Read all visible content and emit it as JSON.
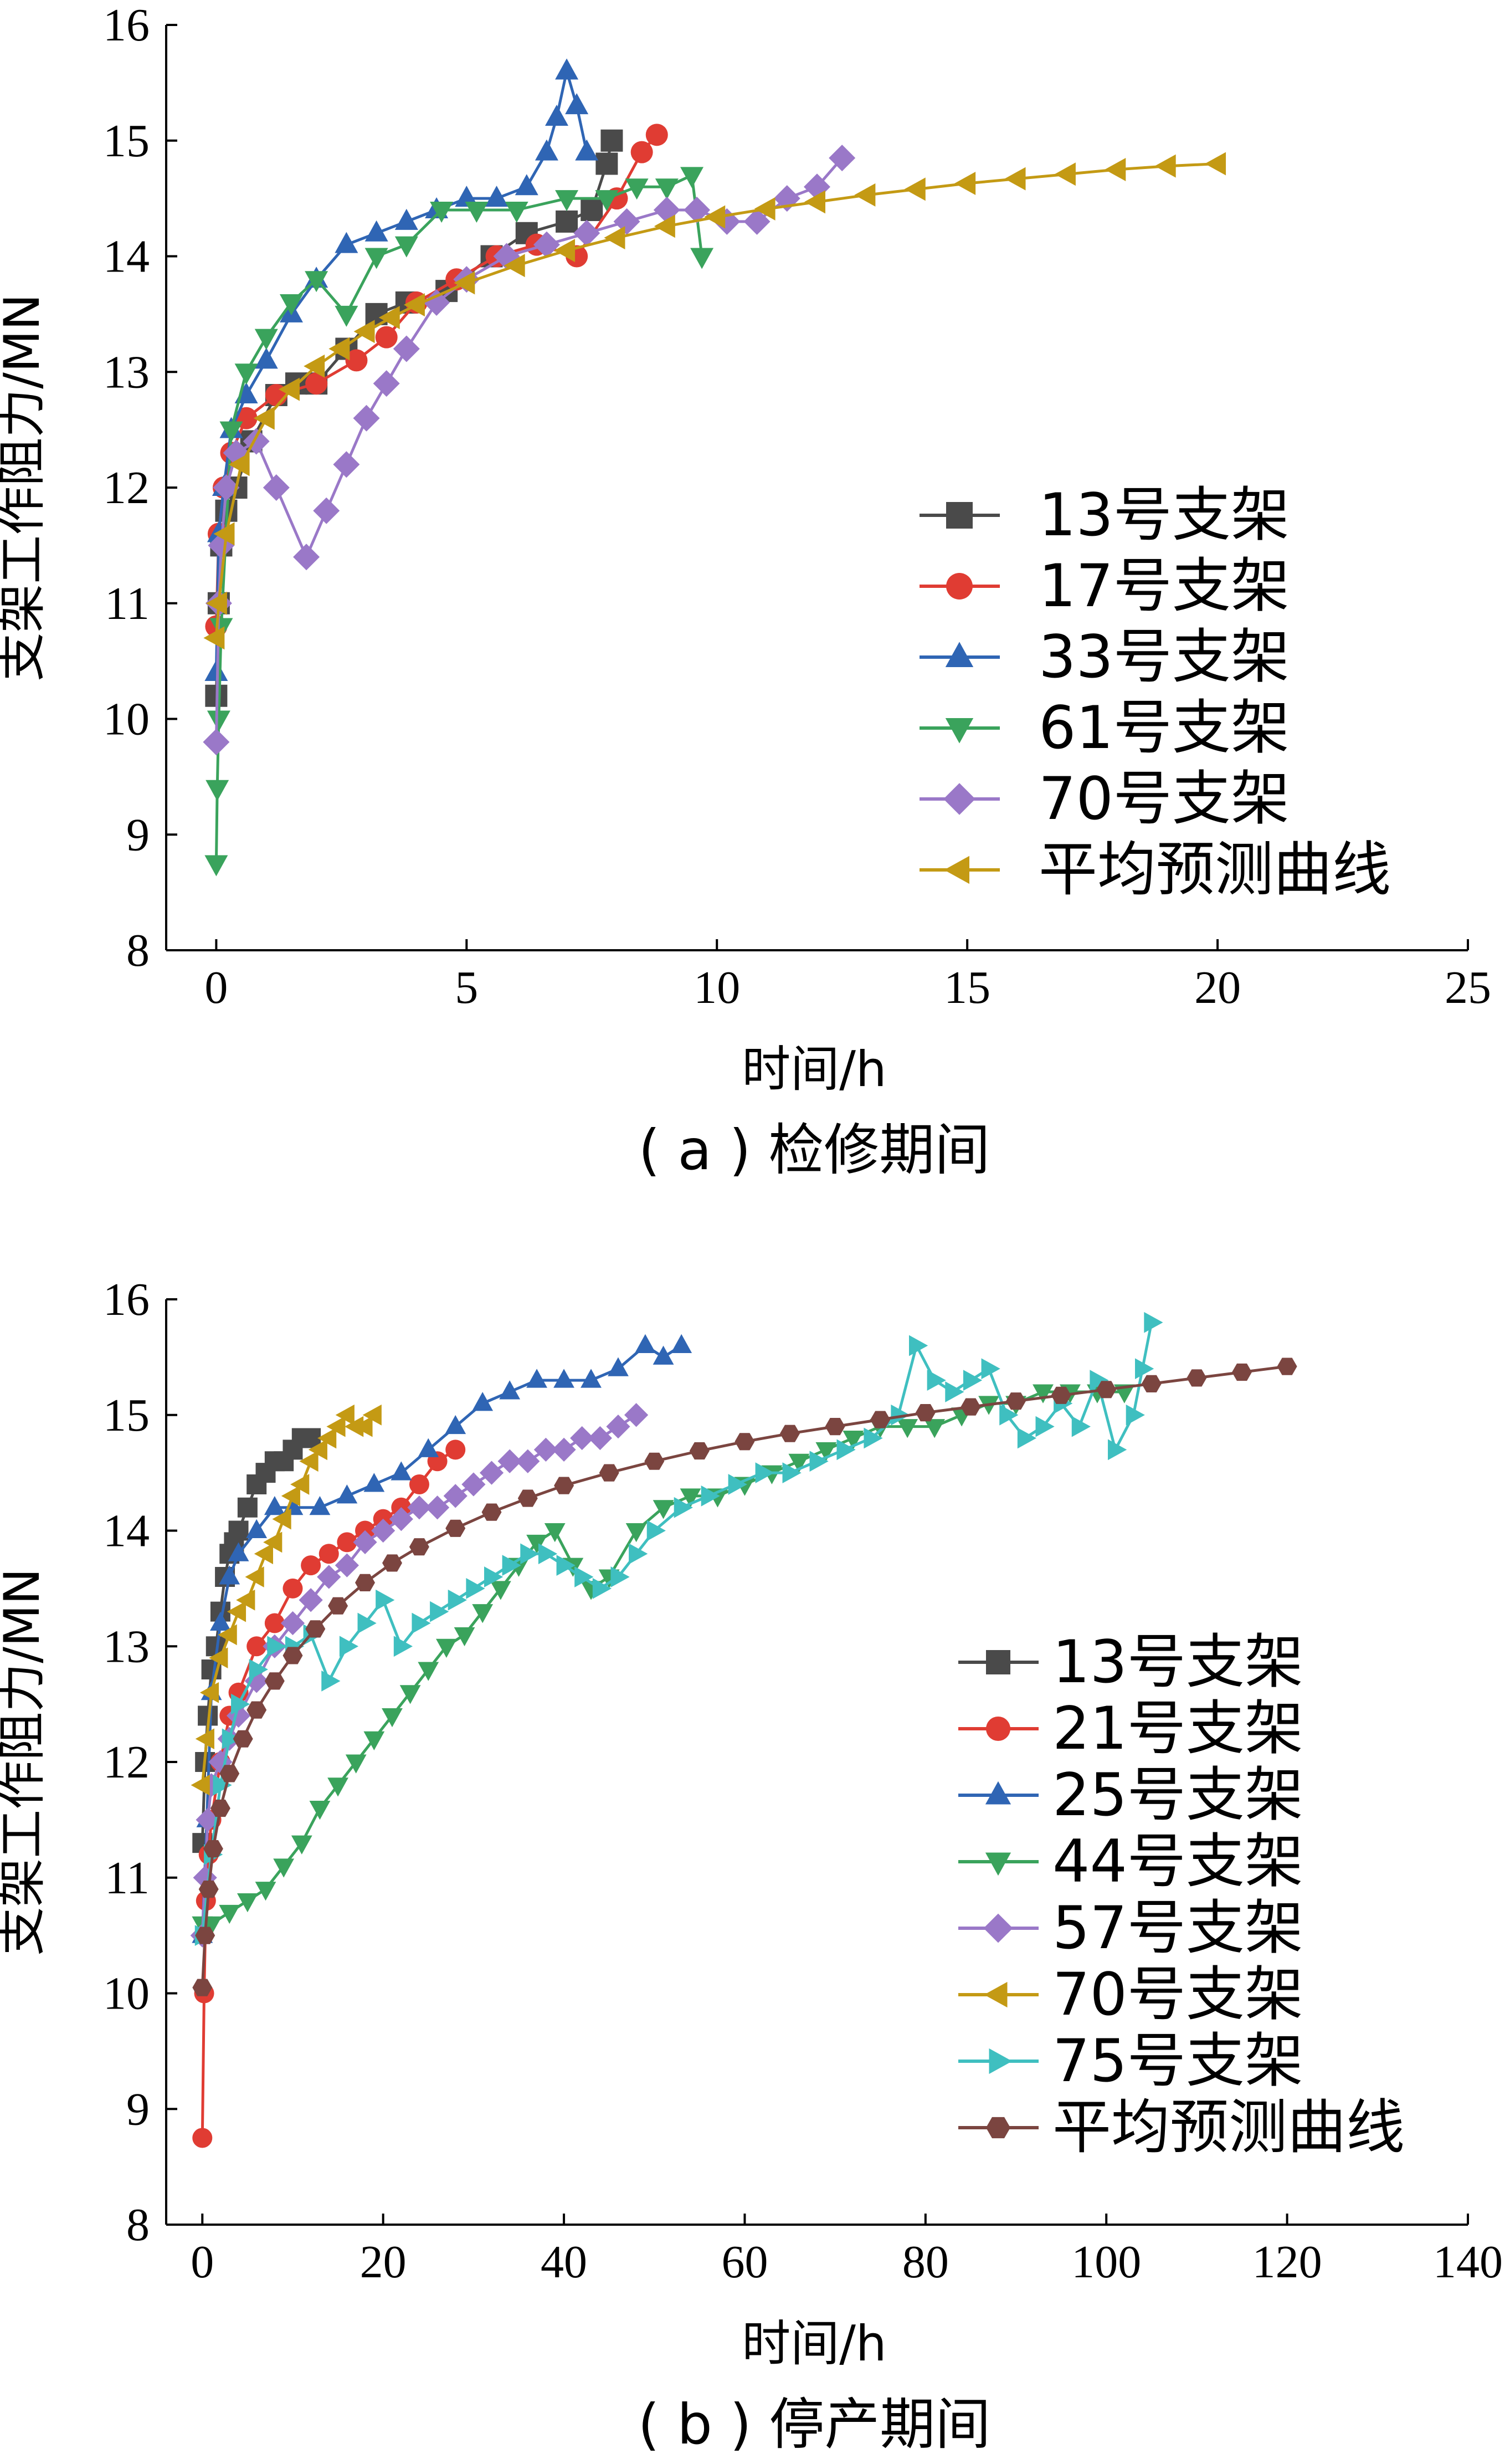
{
  "chart_data": [
    {
      "type": "line",
      "caption": "( a ) 检修期间",
      "xlabel": "时间/h",
      "ylabel": "支架工作阻力/MN",
      "xlim": [
        -1,
        25
      ],
      "ylim": [
        8,
        16
      ],
      "xticks": [
        0,
        5,
        10,
        15,
        20,
        25
      ],
      "yticks": [
        8,
        9,
        10,
        11,
        12,
        13,
        14,
        15,
        16
      ],
      "legend_position": "lower-right",
      "series": [
        {
          "name": "13号支架",
          "color": "#4a4a4a",
          "marker": "square",
          "x": [
            0,
            0.05,
            0.1,
            0.2,
            0.4,
            0.7,
            1.2,
            1.6,
            2.0,
            2.6,
            3.2,
            3.8,
            4.6,
            5.5,
            6.2,
            7.0,
            7.5,
            7.8,
            7.9
          ],
          "y": [
            10.2,
            11.0,
            11.5,
            11.8,
            12.0,
            12.4,
            12.8,
            12.9,
            12.9,
            13.2,
            13.5,
            13.6,
            13.7,
            14.0,
            14.2,
            14.3,
            14.4,
            14.8,
            15.0
          ]
        },
        {
          "name": "17号支架",
          "color": "#e03c33",
          "marker": "circle",
          "x": [
            0,
            0.05,
            0.15,
            0.3,
            0.6,
            1.2,
            2.0,
            2.8,
            3.4,
            4.0,
            4.8,
            5.6,
            6.4,
            7.2,
            8.0,
            8.5,
            8.8
          ],
          "y": [
            10.8,
            11.6,
            12.0,
            12.3,
            12.6,
            12.8,
            12.9,
            13.1,
            13.3,
            13.6,
            13.8,
            14.0,
            14.1,
            14.0,
            14.5,
            14.9,
            15.05
          ]
        },
        {
          "name": "33号支架",
          "color": "#2f65b4",
          "marker": "triangle-up",
          "x": [
            0,
            0.05,
            0.15,
            0.3,
            0.6,
            1.0,
            1.5,
            2.0,
            2.6,
            3.2,
            3.8,
            4.4,
            5.0,
            5.6,
            6.2,
            6.6,
            6.8,
            7.0,
            7.2,
            7.4
          ],
          "y": [
            10.4,
            11.6,
            12.0,
            12.5,
            12.8,
            13.1,
            13.5,
            13.8,
            14.1,
            14.2,
            14.3,
            14.4,
            14.5,
            14.5,
            14.6,
            14.9,
            15.2,
            15.6,
            15.3,
            14.9
          ]
        },
        {
          "name": "61号支架",
          "color": "#3aa35c",
          "marker": "triangle-down",
          "x": [
            0,
            0.02,
            0.05,
            0.1,
            0.3,
            0.6,
            1.0,
            1.5,
            2.0,
            2.6,
            3.2,
            3.8,
            4.5,
            5.2,
            6.0,
            7.0,
            7.8,
            8.4,
            9.0,
            9.5,
            9.7
          ],
          "y": [
            8.75,
            9.4,
            10.0,
            10.8,
            12.5,
            13.0,
            13.3,
            13.6,
            13.8,
            13.5,
            14.0,
            14.1,
            14.4,
            14.4,
            14.4,
            14.5,
            14.5,
            14.6,
            14.6,
            14.7,
            14.0
          ]
        },
        {
          "name": "70号支架",
          "color": "#9a78c8",
          "marker": "diamond",
          "x": [
            0,
            0.05,
            0.1,
            0.2,
            0.4,
            0.8,
            1.2,
            1.8,
            2.2,
            2.6,
            3.0,
            3.4,
            3.8,
            4.4,
            5.0,
            5.8,
            6.6,
            7.4,
            8.2,
            9.0,
            9.6,
            10.2,
            10.8,
            11.4,
            12.0,
            12.5
          ],
          "y": [
            9.8,
            11.0,
            11.5,
            12.0,
            12.3,
            12.4,
            12.0,
            11.4,
            11.8,
            12.2,
            12.6,
            12.9,
            13.2,
            13.6,
            13.8,
            14.0,
            14.1,
            14.2,
            14.3,
            14.4,
            14.4,
            14.3,
            14.3,
            14.5,
            14.6,
            14.85
          ]
        },
        {
          "name": "平均预测曲线",
          "color": "#c49a14",
          "marker": "triangle-left",
          "x": [
            0,
            0.05,
            0.2,
            0.5,
            1.0,
            1.5,
            2.0,
            2.5,
            3.0,
            3.5,
            4.0,
            5.0,
            6.0,
            7.0,
            8.0,
            9.0,
            10.0,
            11.0,
            12.0,
            13.0,
            14.0,
            15.0,
            16.0,
            17.0,
            18.0,
            19.0,
            20.0
          ],
          "y": [
            10.7,
            11.0,
            11.6,
            12.2,
            12.6,
            12.85,
            13.05,
            13.2,
            13.35,
            13.47,
            13.58,
            13.77,
            13.92,
            14.05,
            14.16,
            14.26,
            14.34,
            14.41,
            14.47,
            14.53,
            14.58,
            14.63,
            14.67,
            14.71,
            14.75,
            14.78,
            14.8
          ]
        }
      ]
    },
    {
      "type": "line",
      "caption": "( b ) 停产期间",
      "xlabel": "时间/h",
      "ylabel": "支架工作阻力/MN",
      "xlim": [
        -4,
        140
      ],
      "ylim": [
        8,
        16
      ],
      "xticks": [
        0,
        20,
        40,
        60,
        80,
        100,
        120,
        140
      ],
      "yticks": [
        8,
        9,
        10,
        11,
        12,
        13,
        14,
        15,
        16
      ],
      "legend_position": "lower-right",
      "series": [
        {
          "name": "13号支架",
          "color": "#4a4a4a",
          "marker": "square",
          "x": [
            0,
            0.3,
            0.6,
            1.0,
            1.5,
            2.0,
            2.5,
            3.0,
            3.5,
            4.0,
            5.0,
            6.0,
            7.0,
            8.0,
            9.0,
            10.0,
            11.0,
            12.0
          ],
          "y": [
            11.3,
            12.0,
            12.4,
            12.8,
            13.0,
            13.3,
            13.6,
            13.8,
            13.9,
            14.0,
            14.2,
            14.4,
            14.5,
            14.6,
            14.6,
            14.7,
            14.8,
            14.8
          ]
        },
        {
          "name": "21号支架",
          "color": "#e03c33",
          "marker": "circle",
          "x": [
            0,
            0.2,
            0.4,
            0.7,
            1.0,
            2.0,
            3.0,
            4.0,
            6.0,
            8.0,
            10.0,
            12.0,
            14.0,
            16.0,
            18.0,
            20.0,
            22.0,
            24.0,
            26.0,
            28.0
          ],
          "y": [
            8.75,
            10.0,
            10.8,
            11.2,
            11.5,
            12.0,
            12.4,
            12.6,
            13.0,
            13.2,
            13.5,
            13.7,
            13.8,
            13.9,
            14.0,
            14.1,
            14.2,
            14.4,
            14.6,
            14.7
          ]
        },
        {
          "name": "25号支架",
          "color": "#2f65b4",
          "marker": "triangle-up",
          "x": [
            0,
            0.5,
            1.0,
            2.0,
            3.0,
            4.0,
            6.0,
            8.0,
            10.0,
            13.0,
            16.0,
            19.0,
            22.0,
            25.0,
            28.0,
            31.0,
            34.0,
            37.0,
            40.0,
            43.0,
            46.0,
            49.0,
            51.0,
            53.0
          ],
          "y": [
            10.5,
            11.5,
            12.6,
            13.2,
            13.6,
            13.8,
            14.0,
            14.2,
            14.2,
            14.2,
            14.3,
            14.4,
            14.5,
            14.7,
            14.9,
            15.1,
            15.2,
            15.3,
            15.3,
            15.3,
            15.4,
            15.6,
            15.5,
            15.6
          ]
        },
        {
          "name": "44号支架",
          "color": "#3aa35c",
          "marker": "triangle-down",
          "x": [
            0,
            1.0,
            3.0,
            5.0,
            7.0,
            9.0,
            11.0,
            13.0,
            15.0,
            17.0,
            19.0,
            21.0,
            23.0,
            25.0,
            27.0,
            29.0,
            31.0,
            33.0,
            35.0,
            37.0,
            39.0,
            41.0,
            43.0,
            45.0,
            48.0,
            51.0,
            54.0,
            57.0,
            60.0,
            63.0,
            66.0,
            69.0,
            72.0,
            75.0,
            78.0,
            81.0,
            84.0,
            87.0,
            90.0,
            93.0,
            96.0,
            99.0,
            102.0
          ],
          "y": [
            10.6,
            10.6,
            10.7,
            10.8,
            10.9,
            11.1,
            11.3,
            11.6,
            11.8,
            12.0,
            12.2,
            12.4,
            12.6,
            12.8,
            13.0,
            13.1,
            13.3,
            13.5,
            13.7,
            13.9,
            14.0,
            13.7,
            13.5,
            13.6,
            14.0,
            14.2,
            14.3,
            14.3,
            14.4,
            14.5,
            14.6,
            14.7,
            14.8,
            14.9,
            14.9,
            14.9,
            15.0,
            15.1,
            15.1,
            15.2,
            15.2,
            15.2,
            15.2
          ]
        },
        {
          "name": "57号支架",
          "color": "#9a78c8",
          "marker": "diamond",
          "x": [
            0,
            0.3,
            0.6,
            1.0,
            2.0,
            3.0,
            4.0,
            6.0,
            8.0,
            10.0,
            12.0,
            14.0,
            16.0,
            18.0,
            20.0,
            22.0,
            24.0,
            26.0,
            28.0,
            30.0,
            32.0,
            34.0,
            36.0,
            38.0,
            40.0,
            42.0,
            44.0,
            46.0,
            48.0
          ],
          "y": [
            10.5,
            11.0,
            11.5,
            11.8,
            12.0,
            12.2,
            12.4,
            12.7,
            13.0,
            13.2,
            13.4,
            13.6,
            13.7,
            13.9,
            14.0,
            14.1,
            14.2,
            14.2,
            14.3,
            14.4,
            14.5,
            14.6,
            14.6,
            14.7,
            14.7,
            14.8,
            14.8,
            14.9,
            15.0
          ]
        },
        {
          "name": "70号支架",
          "color": "#c49a14",
          "marker": "triangle-left",
          "x": [
            0,
            0.5,
            1.0,
            2.0,
            3.0,
            4.0,
            5.0,
            6.0,
            7.0,
            8.0,
            9.0,
            10.0,
            11.0,
            12.0,
            13.0,
            14.0,
            15.0,
            16.0,
            17.0,
            18.0,
            19.0
          ],
          "y": [
            11.8,
            12.2,
            12.6,
            12.9,
            13.1,
            13.3,
            13.4,
            13.6,
            13.8,
            13.9,
            14.1,
            14.3,
            14.4,
            14.6,
            14.7,
            14.8,
            14.9,
            15.0,
            14.9,
            14.9,
            15.0
          ]
        },
        {
          "name": "75号支架",
          "color": "#3fbfc0",
          "marker": "triangle-right",
          "x": [
            0,
            1.0,
            2.0,
            3.0,
            4.0,
            6.0,
            8.0,
            10.0,
            12.0,
            14.0,
            16.0,
            18.0,
            20.0,
            22.0,
            24.0,
            26.0,
            28.0,
            30.0,
            32.0,
            34.0,
            36.0,
            38.0,
            40.0,
            42.0,
            44.0,
            46.0,
            48.0,
            50.0,
            53.0,
            56.0,
            59.0,
            62.0,
            65.0,
            68.0,
            71.0,
            74.0,
            77.0,
            79.0,
            81.0,
            83.0,
            85.0,
            87.0,
            89.0,
            91.0,
            93.0,
            95.0,
            97.0,
            99.0,
            101.0,
            103.0,
            104.0,
            105.0
          ],
          "y": [
            10.5,
            11.2,
            11.8,
            12.2,
            12.5,
            12.8,
            13.0,
            13.0,
            13.1,
            12.7,
            13.0,
            13.2,
            13.4,
            13.0,
            13.2,
            13.3,
            13.4,
            13.5,
            13.6,
            13.7,
            13.8,
            13.8,
            13.7,
            13.6,
            13.5,
            13.6,
            13.8,
            14.0,
            14.2,
            14.3,
            14.4,
            14.5,
            14.5,
            14.6,
            14.7,
            14.8,
            15.0,
            15.6,
            15.3,
            15.2,
            15.3,
            15.4,
            15.0,
            14.8,
            14.9,
            15.1,
            14.9,
            15.3,
            14.7,
            15.0,
            15.4,
            15.8
          ]
        },
        {
          "name": "平均预测曲线",
          "color": "#7b4540",
          "marker": "hexagon",
          "x": [
            0,
            0.3,
            0.7,
            1.2,
            2.0,
            3.0,
            4.5,
            6.0,
            8.0,
            10.0,
            12.5,
            15.0,
            18.0,
            21.0,
            24.0,
            28.0,
            32.0,
            36.0,
            40.0,
            45.0,
            50.0,
            55.0,
            60.0,
            65.0,
            70.0,
            75.0,
            80.0,
            85.0,
            90.0,
            95.0,
            100.0,
            105.0,
            110.0,
            115.0,
            120.0
          ],
          "y": [
            10.05,
            10.5,
            10.9,
            11.25,
            11.6,
            11.9,
            12.2,
            12.45,
            12.7,
            12.92,
            13.15,
            13.35,
            13.55,
            13.72,
            13.86,
            14.02,
            14.16,
            14.28,
            14.39,
            14.5,
            14.6,
            14.69,
            14.77,
            14.84,
            14.9,
            14.96,
            15.02,
            15.07,
            15.12,
            15.17,
            15.22,
            15.27,
            15.32,
            15.37,
            15.42
          ]
        }
      ]
    }
  ]
}
